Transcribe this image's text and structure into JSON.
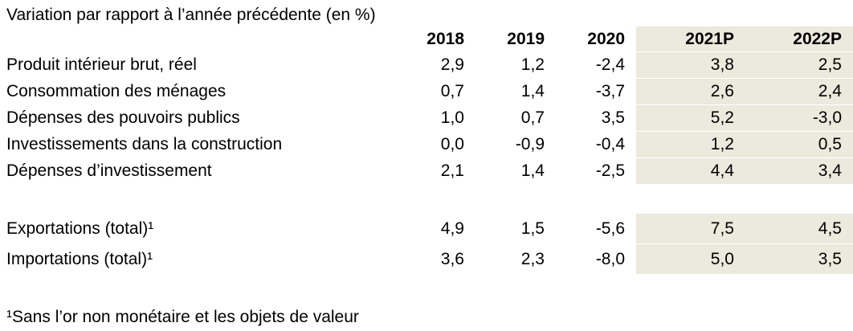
{
  "title": "Variation par rapport à l’année précédente (en %)",
  "colors": {
    "background": "#FFFFFF",
    "text": "#000000",
    "forecast_highlight": "#ECE9DD",
    "highlight_row_separator": "#FFFFFF"
  },
  "table": {
    "columns": [
      "2018",
      "2019",
      "2020",
      "2021P",
      "2022P"
    ],
    "highlighted_columns": [
      "2021P",
      "2022P"
    ],
    "rows": [
      {
        "label": "Produit intérieur brut, réel",
        "values": [
          "2,9",
          "1,2",
          "-2,4",
          "3,8",
          "2,5"
        ]
      },
      {
        "label": "Consommation des ménages",
        "values": [
          "0,7",
          "1,4",
          "-3,7",
          "2,6",
          "2,4"
        ]
      },
      {
        "label": "Dépenses des pouvoirs publics",
        "values": [
          "1,0",
          "0,7",
          "3,5",
          "5,2",
          "-3,0"
        ]
      },
      {
        "label": "Investissements dans la construction",
        "values": [
          "0,0",
          "-0,9",
          "-0,4",
          "1,2",
          "0,5"
        ]
      },
      {
        "label": "Dépenses d’investissement",
        "values": [
          "2,1",
          "1,4",
          "-2,5",
          "4,4",
          "3,4"
        ]
      }
    ],
    "rows_trade": [
      {
        "label": "Exportations (total)¹",
        "values": [
          "4,9",
          "1,5",
          "-5,6",
          "7,5",
          "4,5"
        ]
      },
      {
        "label": "Importations (total)¹",
        "values": [
          "3,6",
          "2,3",
          "-8,0",
          "5,0",
          "3,5"
        ]
      }
    ]
  },
  "footnote": "¹Sans l’or non monétaire et les objets de valeur"
}
